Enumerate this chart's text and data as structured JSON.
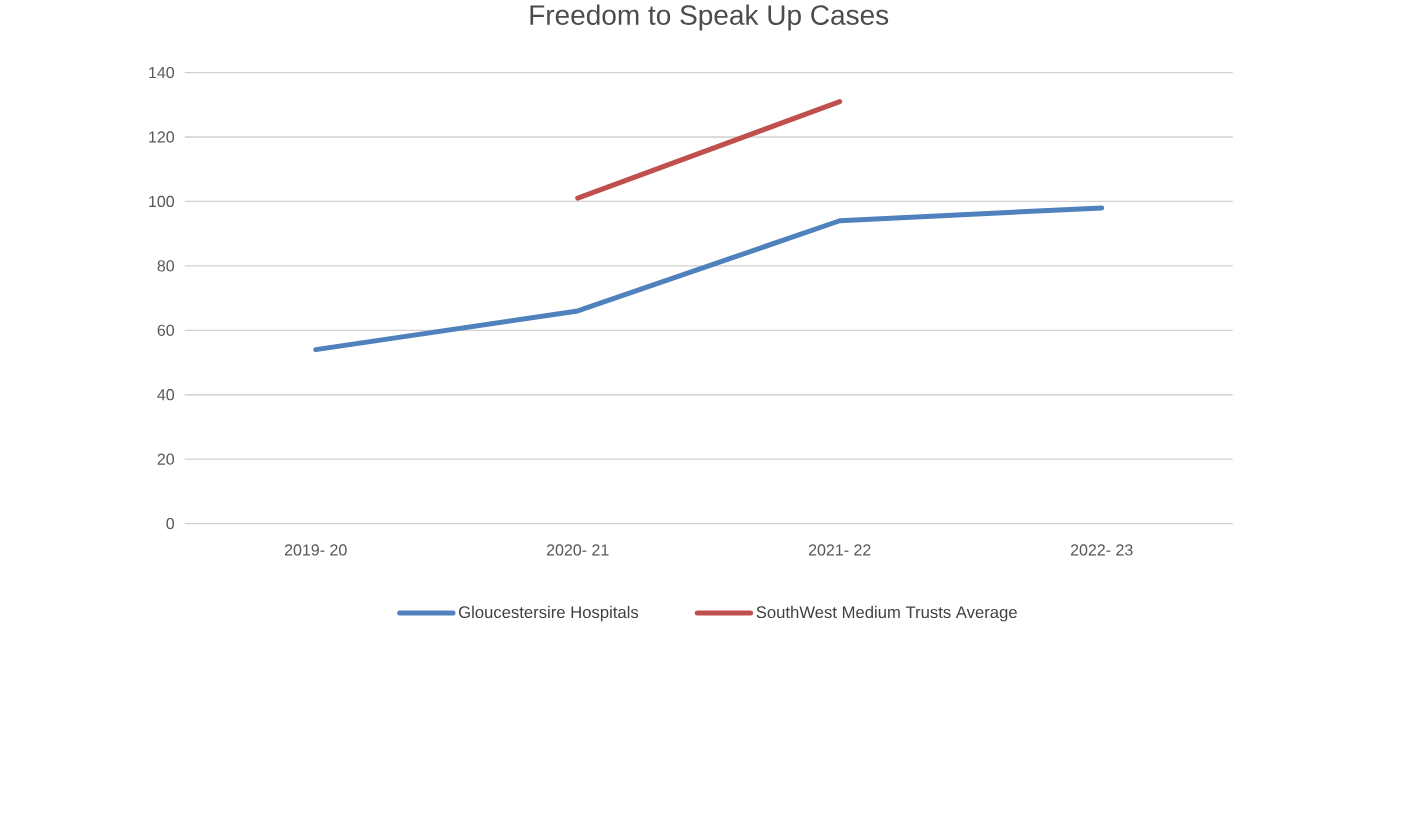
{
  "chart_data": {
    "type": "line",
    "title": "Freedom to Speak Up Cases",
    "categories": [
      "2019- 20",
      "2020- 21",
      "2021- 22",
      "2022- 23"
    ],
    "series": [
      {
        "name": "Gloucestersire Hospitals",
        "color": "#4f81bd",
        "values": [
          54,
          66,
          94,
          98
        ]
      },
      {
        "name": "SouthWest Medium Trusts Average",
        "color": "#c0504d",
        "values": [
          null,
          101,
          131,
          null
        ]
      }
    ],
    "ylim": [
      0,
      140
    ],
    "yticks": [
      0,
      20,
      40,
      60,
      80,
      100,
      120,
      140
    ],
    "grid": "y",
    "legend": "bottom",
    "marker": "none",
    "line_style": "solid"
  }
}
